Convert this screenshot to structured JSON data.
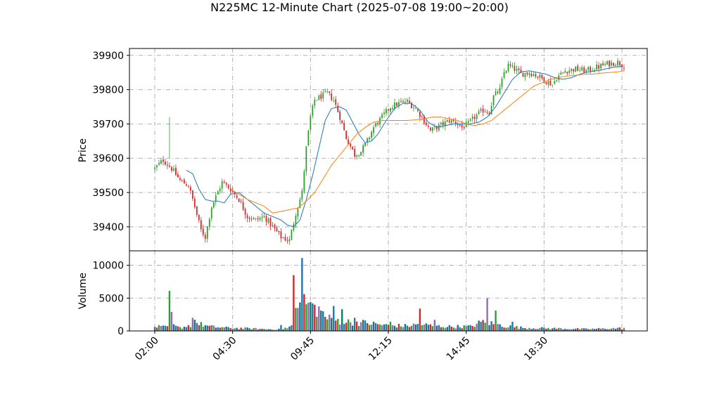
{
  "chart_data": {
    "type": "candlestick",
    "title": "N225MC 12-Minute Chart (2025-07-08 19:00~20:00)",
    "price_panel": {
      "ylabel": "Price",
      "ylim": [
        39330,
        39920
      ],
      "yticks": [
        39400,
        39500,
        39600,
        39700,
        39800,
        39900
      ],
      "grid": true,
      "up_color": "#2ca02c",
      "down_color": "#d62728",
      "series": [
        {
          "name": "Short MA",
          "color": "#1f77b4"
        },
        {
          "name": "Long MA",
          "color": "#ff7f0e"
        }
      ],
      "close_profile": [
        [
          0,
          39570
        ],
        [
          4,
          39595
        ],
        [
          8,
          39570
        ],
        [
          12,
          39535
        ],
        [
          16,
          39520
        ],
        [
          18,
          39480
        ],
        [
          22,
          39390
        ],
        [
          24,
          39370
        ],
        [
          27,
          39460
        ],
        [
          32,
          39530
        ],
        [
          36,
          39510
        ],
        [
          40,
          39480
        ],
        [
          44,
          39430
        ],
        [
          48,
          39420
        ],
        [
          52,
          39430
        ],
        [
          56,
          39400
        ],
        [
          60,
          39370
        ],
        [
          64,
          39360
        ],
        [
          67,
          39440
        ],
        [
          70,
          39500
        ],
        [
          72,
          39630
        ],
        [
          74,
          39720
        ],
        [
          76,
          39770
        ],
        [
          79,
          39780
        ],
        [
          82,
          39790
        ],
        [
          85,
          39770
        ],
        [
          88,
          39720
        ],
        [
          91,
          39660
        ],
        [
          95,
          39610
        ],
        [
          98,
          39620
        ],
        [
          101,
          39650
        ],
        [
          104,
          39690
        ],
        [
          108,
          39720
        ],
        [
          112,
          39750
        ],
        [
          116,
          39760
        ],
        [
          120,
          39765
        ],
        [
          124,
          39745
        ],
        [
          128,
          39710
        ],
        [
          131,
          39680
        ],
        [
          134,
          39690
        ],
        [
          137,
          39700
        ],
        [
          140,
          39710
        ],
        [
          143,
          39705
        ],
        [
          146,
          39690
        ],
        [
          149,
          39700
        ],
        [
          152,
          39720
        ],
        [
          156,
          39740
        ],
        [
          159,
          39735
        ],
        [
          161,
          39780
        ],
        [
          164,
          39800
        ],
        [
          166,
          39850
        ],
        [
          168,
          39870
        ],
        [
          171,
          39860
        ],
        [
          174,
          39845
        ],
        [
          178,
          39850
        ],
        [
          182,
          39840
        ],
        [
          186,
          39825
        ],
        [
          189,
          39815
        ],
        [
          191,
          39835
        ],
        [
          195,
          39855
        ],
        [
          200,
          39860
        ],
        [
          205,
          39855
        ],
        [
          210,
          39865
        ],
        [
          215,
          39875
        ],
        [
          220,
          39880
        ],
        [
          223,
          39870
        ]
      ],
      "short_ma_points": [
        [
          15,
          39565
        ],
        [
          18,
          39555
        ],
        [
          21,
          39510
        ],
        [
          24,
          39480
        ],
        [
          27,
          39475
        ],
        [
          30,
          39475
        ],
        [
          33,
          39470
        ],
        [
          36,
          39495
        ],
        [
          40,
          39500
        ],
        [
          44,
          39480
        ],
        [
          48,
          39460
        ],
        [
          52,
          39440
        ],
        [
          56,
          39430
        ],
        [
          60,
          39420
        ],
        [
          63,
          39405
        ],
        [
          66,
          39400
        ],
        [
          69,
          39420
        ],
        [
          72,
          39480
        ],
        [
          75,
          39550
        ],
        [
          78,
          39630
        ],
        [
          81,
          39710
        ],
        [
          84,
          39745
        ],
        [
          88,
          39750
        ],
        [
          91,
          39740
        ],
        [
          94,
          39705
        ],
        [
          97,
          39670
        ],
        [
          100,
          39645
        ],
        [
          103,
          39650
        ],
        [
          106,
          39670
        ],
        [
          110,
          39710
        ],
        [
          114,
          39745
        ],
        [
          118,
          39760
        ],
        [
          122,
          39760
        ],
        [
          126,
          39740
        ],
        [
          130,
          39705
        ],
        [
          134,
          39690
        ],
        [
          138,
          39695
        ],
        [
          142,
          39700
        ],
        [
          146,
          39700
        ],
        [
          150,
          39700
        ],
        [
          154,
          39705
        ],
        [
          158,
          39720
        ],
        [
          162,
          39750
        ],
        [
          166,
          39790
        ],
        [
          170,
          39830
        ],
        [
          174,
          39852
        ],
        [
          178,
          39855
        ],
        [
          182,
          39850
        ],
        [
          186,
          39845
        ],
        [
          190,
          39835
        ],
        [
          194,
          39830
        ],
        [
          198,
          39835
        ],
        [
          202,
          39845
        ],
        [
          206,
          39852
        ],
        [
          210,
          39855
        ],
        [
          214,
          39860
        ],
        [
          218,
          39865
        ],
        [
          222,
          39868
        ]
      ],
      "long_ma_points": [
        [
          36,
          39510
        ],
        [
          40,
          39495
        ],
        [
          44,
          39480
        ],
        [
          48,
          39470
        ],
        [
          52,
          39460
        ],
        [
          56,
          39440
        ],
        [
          60,
          39445
        ],
        [
          64,
          39450
        ],
        [
          68,
          39455
        ],
        [
          72,
          39475
        ],
        [
          76,
          39500
        ],
        [
          80,
          39540
        ],
        [
          84,
          39580
        ],
        [
          88,
          39610
        ],
        [
          92,
          39640
        ],
        [
          96,
          39670
        ],
        [
          100,
          39690
        ],
        [
          104,
          39705
        ],
        [
          108,
          39710
        ],
        [
          112,
          39710
        ],
        [
          116,
          39710
        ],
        [
          120,
          39710
        ],
        [
          124,
          39712
        ],
        [
          128,
          39715
        ],
        [
          132,
          39720
        ],
        [
          136,
          39720
        ],
        [
          140,
          39715
        ],
        [
          144,
          39710
        ],
        [
          148,
          39700
        ],
        [
          152,
          39695
        ],
        [
          156,
          39700
        ],
        [
          160,
          39710
        ],
        [
          164,
          39730
        ],
        [
          168,
          39750
        ],
        [
          172,
          39770
        ],
        [
          176,
          39790
        ],
        [
          180,
          39810
        ],
        [
          184,
          39820
        ],
        [
          188,
          39830
        ],
        [
          192,
          39835
        ],
        [
          196,
          39840
        ],
        [
          200,
          39842
        ],
        [
          204,
          39845
        ],
        [
          208,
          39845
        ],
        [
          212,
          39848
        ],
        [
          216,
          39850
        ],
        [
          220,
          39852
        ],
        [
          223,
          39855
        ]
      ]
    },
    "volume_panel": {
      "ylabel": "Volume",
      "ylim": [
        0,
        12200
      ],
      "yticks": [
        0,
        5000,
        10000
      ],
      "yticklabels": [
        "0",
        "5000",
        "10000"
      ],
      "grid": true,
      "colors": [
        "#1f77b4",
        "#d62728",
        "#2ca02c",
        "#9467bd",
        "#0f7b6c"
      ],
      "base_profile": [
        [
          0,
          700
        ],
        [
          5,
          600
        ],
        [
          8,
          900
        ],
        [
          12,
          500
        ],
        [
          20,
          1200
        ],
        [
          26,
          700
        ],
        [
          34,
          500
        ],
        [
          44,
          400
        ],
        [
          52,
          300
        ],
        [
          60,
          250
        ],
        [
          65,
          800
        ],
        [
          68,
          3500
        ],
        [
          70,
          4800
        ],
        [
          74,
          3900
        ],
        [
          78,
          3500
        ],
        [
          82,
          2000
        ],
        [
          90,
          1500
        ],
        [
          100,
          1300
        ],
        [
          110,
          900
        ],
        [
          120,
          800
        ],
        [
          126,
          1100
        ],
        [
          132,
          800
        ],
        [
          140,
          700
        ],
        [
          150,
          700
        ],
        [
          156,
          1500
        ],
        [
          160,
          1200
        ],
        [
          166,
          800
        ],
        [
          175,
          500
        ],
        [
          190,
          400
        ],
        [
          205,
          300
        ],
        [
          223,
          450
        ]
      ],
      "spikes": [
        [
          7,
          6100
        ],
        [
          8,
          2900
        ],
        [
          18,
          2000
        ],
        [
          19,
          1700
        ],
        [
          60,
          900
        ],
        [
          63,
          400
        ],
        [
          66,
          8500
        ],
        [
          67,
          3500
        ],
        [
          68,
          3500
        ],
        [
          70,
          11100
        ],
        [
          71,
          5600
        ],
        [
          73,
          4300
        ],
        [
          75,
          4200
        ],
        [
          79,
          3100
        ],
        [
          85,
          3800
        ],
        [
          89,
          3300
        ],
        [
          95,
          2000
        ],
        [
          112,
          1400
        ],
        [
          126,
          3400
        ],
        [
          133,
          1700
        ],
        [
          158,
          5000
        ],
        [
          162,
          3100
        ],
        [
          170,
          1400
        ]
      ]
    },
    "x_axis": {
      "count": 224,
      "ticks": [
        {
          "index": 0,
          "label": "02:00"
        },
        {
          "index": 37,
          "label": "04:30"
        },
        {
          "index": 74,
          "label": "09:45"
        },
        {
          "index": 111,
          "label": "12:15"
        },
        {
          "index": 148,
          "label": "14:45"
        },
        {
          "index": 185,
          "label": "18:30"
        },
        {
          "index": 222,
          "label": ""
        }
      ]
    }
  }
}
